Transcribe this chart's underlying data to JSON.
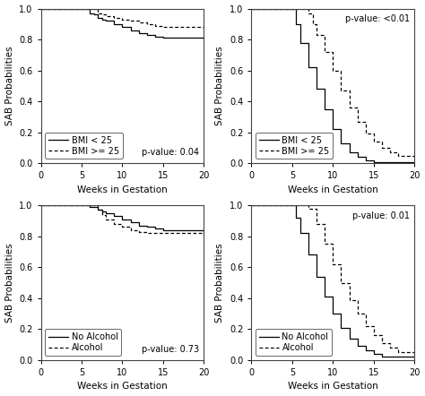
{
  "pvalues": [
    "p-value: 0.04",
    "p-value: <0.01",
    "p-value: 0.73",
    "p-value: 0.01"
  ],
  "ylabel": "SAB Probabilities",
  "xlabel": "Weeks in Gestation",
  "xlim": [
    0,
    20
  ],
  "ylim": [
    0.0,
    1.0
  ],
  "yticks": [
    0.0,
    0.2,
    0.4,
    0.6,
    0.8,
    1.0
  ],
  "xticks": [
    0,
    5,
    10,
    15,
    20
  ],
  "p1_solid_x": [
    0,
    5.5,
    6.0,
    6.5,
    7.0,
    7.5,
    8.0,
    9.0,
    10.0,
    11.0,
    12.0,
    13.0,
    14.0,
    15.0,
    20.0
  ],
  "p1_solid_y": [
    1.0,
    1.0,
    0.97,
    0.96,
    0.94,
    0.93,
    0.92,
    0.9,
    0.88,
    0.86,
    0.84,
    0.83,
    0.82,
    0.81,
    0.81
  ],
  "p1_dotted_x": [
    0,
    6.0,
    7.0,
    7.5,
    8.0,
    9.0,
    10.0,
    11.0,
    12.0,
    13.0,
    14.0,
    15.0,
    20.0
  ],
  "p1_dotted_y": [
    1.0,
    1.0,
    0.97,
    0.96,
    0.95,
    0.94,
    0.93,
    0.92,
    0.91,
    0.9,
    0.89,
    0.88,
    0.87
  ],
  "p1_legend": [
    "BMI < 25",
    "BMI >= 25"
  ],
  "p1_pvalue_loc": "bottom_right",
  "p2_solid_x": [
    0,
    5.0,
    5.5,
    6.0,
    7.0,
    8.0,
    9.0,
    10.0,
    11.0,
    12.0,
    13.0,
    14.0,
    15.0,
    16.0,
    17.0,
    18.0,
    20.0
  ],
  "p2_solid_y": [
    1.0,
    1.0,
    0.9,
    0.78,
    0.62,
    0.48,
    0.35,
    0.22,
    0.13,
    0.07,
    0.04,
    0.02,
    0.01,
    0.01,
    0.01,
    0.01,
    0.01
  ],
  "p2_dotted_x": [
    0,
    6.0,
    7.0,
    7.5,
    8.0,
    9.0,
    10.0,
    11.0,
    12.0,
    13.0,
    14.0,
    15.0,
    16.0,
    17.0,
    18.0,
    20.0
  ],
  "p2_dotted_y": [
    1.0,
    1.0,
    0.97,
    0.9,
    0.83,
    0.72,
    0.6,
    0.47,
    0.36,
    0.27,
    0.19,
    0.14,
    0.1,
    0.07,
    0.05,
    0.03
  ],
  "p2_legend": [
    "BMI < 25",
    "BMI >= 25"
  ],
  "p2_pvalue_loc": "top_right",
  "p3_solid_x": [
    0,
    5.5,
    6.0,
    7.0,
    7.5,
    8.0,
    9.0,
    10.0,
    11.0,
    12.0,
    13.0,
    14.0,
    15.0,
    20.0
  ],
  "p3_solid_y": [
    1.0,
    1.0,
    0.99,
    0.97,
    0.96,
    0.95,
    0.93,
    0.91,
    0.89,
    0.87,
    0.86,
    0.85,
    0.84,
    0.83
  ],
  "p3_dotted_x": [
    0,
    6.0,
    7.0,
    7.5,
    8.0,
    9.0,
    10.0,
    11.0,
    12.0,
    13.0,
    14.0,
    15.0,
    20.0
  ],
  "p3_dotted_y": [
    1.0,
    1.0,
    0.97,
    0.94,
    0.91,
    0.88,
    0.86,
    0.84,
    0.83,
    0.82,
    0.82,
    0.82,
    0.81
  ],
  "p3_legend": [
    "No Alcohol",
    "Alcohol"
  ],
  "p3_pvalue_loc": "bottom_right",
  "p4_solid_x": [
    0,
    5.0,
    5.5,
    6.0,
    7.0,
    8.0,
    9.0,
    10.0,
    11.0,
    12.0,
    13.0,
    14.0,
    15.0,
    16.0,
    17.0,
    18.0,
    20.0
  ],
  "p4_solid_y": [
    1.0,
    1.0,
    0.92,
    0.82,
    0.68,
    0.54,
    0.41,
    0.3,
    0.21,
    0.14,
    0.09,
    0.06,
    0.04,
    0.02,
    0.02,
    0.02,
    0.02
  ],
  "p4_dotted_x": [
    0,
    6.0,
    7.0,
    8.0,
    9.0,
    10.0,
    11.0,
    12.0,
    13.0,
    14.0,
    15.0,
    16.0,
    17.0,
    18.0,
    20.0
  ],
  "p4_dotted_y": [
    1.0,
    1.0,
    0.98,
    0.88,
    0.75,
    0.62,
    0.5,
    0.39,
    0.3,
    0.22,
    0.16,
    0.11,
    0.08,
    0.05,
    0.04
  ],
  "p4_legend": [
    "No Alcohol",
    "Alcohol"
  ],
  "p4_pvalue_loc": "top_right",
  "line_color": "#000000",
  "bg_color": "#ffffff",
  "fontsize_tick": 7,
  "fontsize_label": 7.5,
  "fontsize_pvalue": 7,
  "fontsize_legend": 7
}
